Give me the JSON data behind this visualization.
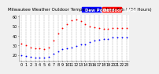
{
  "title": "Milwaukee Weather Outdoor Temperature vs Dew Point (24 Hours)",
  "title_left": "Milwaukee Weather",
  "title_right": "Outdoor Temperature vs Dew Point (24 Hours)",
  "background_color": "#f0f0f0",
  "plot_bg_color": "#ffffff",
  "grid_color": "#999999",
  "temp_color": "#ff0000",
  "dew_color": "#0000ff",
  "legend_temp_label": "Outdoor Temp",
  "legend_dew_label": "Dew Point",
  "hours": [
    0,
    1,
    2,
    3,
    4,
    5,
    6,
    7,
    8,
    9,
    10,
    11,
    12,
    13,
    14,
    15,
    16,
    17,
    18,
    19,
    20,
    21,
    22,
    23
  ],
  "temp": [
    32,
    30,
    28,
    27,
    27,
    26,
    28,
    35,
    42,
    48,
    52,
    56,
    57,
    55,
    52,
    50,
    49,
    48,
    47,
    47,
    48,
    48,
    48,
    48
  ],
  "dew": [
    20,
    19,
    18,
    17,
    17,
    17,
    18,
    21,
    24,
    26,
    27,
    28,
    29,
    31,
    31,
    33,
    35,
    36,
    37,
    37,
    38,
    38,
    38,
    38
  ],
  "ylim": [
    14,
    62
  ],
  "xlim": [
    -0.5,
    23.5
  ],
  "title_fontsize": 4.0,
  "tick_fontsize": 3.5,
  "legend_fontsize": 3.8,
  "marker_size": 1.8,
  "grid_on": true,
  "yticks": [
    20,
    30,
    40,
    50,
    60
  ]
}
